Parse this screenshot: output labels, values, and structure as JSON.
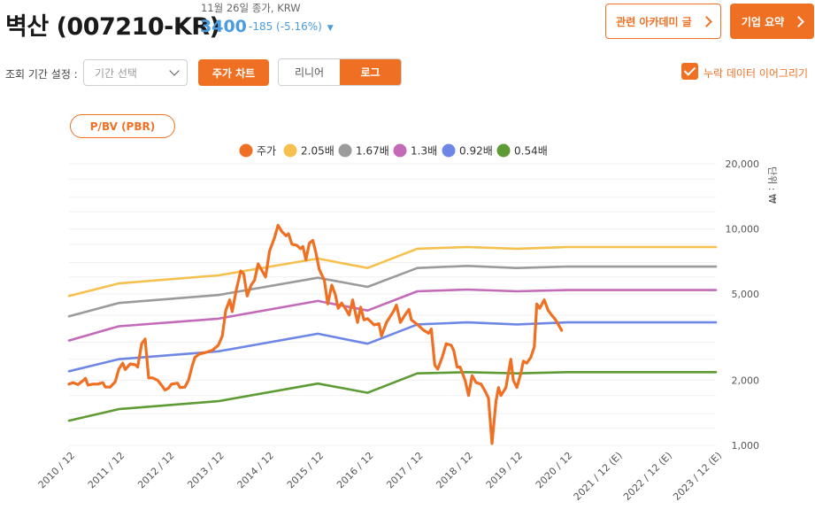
{
  "header": {
    "stock_name": "벽산 (007210-KR)",
    "close_date": "11월 26일 종가, KRW",
    "price": "3400",
    "price_change": "-185 (-5.16%)",
    "academy_button": "관련 아카데미 글",
    "summary_button": "기업 요약"
  },
  "controls": {
    "period_label": "조회 기간 설정 :",
    "period_placeholder": "기간 선택",
    "chart_button": "주가 차트",
    "scale_options": [
      "리니어",
      "로그"
    ],
    "scale_selected": "로그",
    "connect_missing_label": "누락 데이터 이어그리기",
    "connect_missing_checked": true
  },
  "tab": {
    "label": "P/BV (PBR)"
  },
  "colors": {
    "accent": "#f07023",
    "price_positive": "#4a9be0"
  },
  "chart_data": {
    "type": "line",
    "y_scale": "log",
    "ylim": [
      1000,
      20000
    ],
    "y_unit_label": "단위 : ₩",
    "y_ticks": [
      {
        "value": 1000,
        "label": "1,000"
      },
      {
        "value": 2000,
        "label": "2,000"
      },
      {
        "value": 5000,
        "label": "5,000"
      },
      {
        "value": 10000,
        "label": "10,000"
      },
      {
        "value": 20000,
        "label": "20,000"
      }
    ],
    "xlim": [
      2010.92,
      2023.92
    ],
    "x_ticks": [
      {
        "value": 2010.92,
        "label": "2010 / 12"
      },
      {
        "value": 2011.92,
        "label": "2011 / 12"
      },
      {
        "value": 2012.92,
        "label": "2012 / 12"
      },
      {
        "value": 2013.92,
        "label": "2013 / 12"
      },
      {
        "value": 2014.92,
        "label": "2014 / 12"
      },
      {
        "value": 2015.92,
        "label": "2015 / 12"
      },
      {
        "value": 2016.92,
        "label": "2016 / 12"
      },
      {
        "value": 2017.92,
        "label": "2017 / 12"
      },
      {
        "value": 2018.92,
        "label": "2018 / 12"
      },
      {
        "value": 2019.92,
        "label": "2019 / 12"
      },
      {
        "value": 2020.92,
        "label": "2020 / 12"
      },
      {
        "value": 2021.92,
        "label": "2021 / 12 (E)"
      },
      {
        "value": 2022.92,
        "label": "2022 / 12 (E)"
      },
      {
        "value": 2023.92,
        "label": "2023 / 12 (E)"
      }
    ],
    "grid": true,
    "legend_position": "top",
    "series": [
      {
        "name": "주가",
        "color": "#f07023",
        "points": [
          [
            2010.92,
            1920
          ],
          [
            2011.0,
            1950
          ],
          [
            2011.1,
            1910
          ],
          [
            2011.2,
            1990
          ],
          [
            2011.25,
            2040
          ],
          [
            2011.3,
            1900
          ],
          [
            2011.4,
            1920
          ],
          [
            2011.5,
            1920
          ],
          [
            2011.6,
            1950
          ],
          [
            2011.65,
            1860
          ],
          [
            2011.75,
            1860
          ],
          [
            2011.85,
            1970
          ],
          [
            2011.92,
            2250
          ],
          [
            2012.0,
            2400
          ],
          [
            2012.05,
            2240
          ],
          [
            2012.15,
            2380
          ],
          [
            2012.25,
            2360
          ],
          [
            2012.3,
            2300
          ],
          [
            2012.38,
            2950
          ],
          [
            2012.45,
            3100
          ],
          [
            2012.52,
            2050
          ],
          [
            2012.6,
            2050
          ],
          [
            2012.7,
            2000
          ],
          [
            2012.8,
            1870
          ],
          [
            2012.85,
            1800
          ],
          [
            2012.92,
            1840
          ],
          [
            2012.98,
            1920
          ],
          [
            2013.1,
            1940
          ],
          [
            2013.15,
            1850
          ],
          [
            2013.25,
            1860
          ],
          [
            2013.32,
            2000
          ],
          [
            2013.4,
            2350
          ],
          [
            2013.45,
            2550
          ],
          [
            2013.55,
            2650
          ],
          [
            2013.65,
            2680
          ],
          [
            2013.8,
            2750
          ],
          [
            2013.92,
            2900
          ],
          [
            2014.0,
            3200
          ],
          [
            2014.07,
            4200
          ],
          [
            2014.15,
            4700
          ],
          [
            2014.2,
            4150
          ],
          [
            2014.28,
            5200
          ],
          [
            2014.37,
            6400
          ],
          [
            2014.43,
            6200
          ],
          [
            2014.5,
            4900
          ],
          [
            2014.58,
            5500
          ],
          [
            2014.65,
            5800
          ],
          [
            2014.72,
            6900
          ],
          [
            2014.8,
            6400
          ],
          [
            2014.87,
            6000
          ],
          [
            2014.95,
            7900
          ],
          [
            2015.05,
            9100
          ],
          [
            2015.12,
            10400
          ],
          [
            2015.2,
            9700
          ],
          [
            2015.28,
            9300
          ],
          [
            2015.33,
            9500
          ],
          [
            2015.4,
            8500
          ],
          [
            2015.5,
            8400
          ],
          [
            2015.57,
            8100
          ],
          [
            2015.62,
            8300
          ],
          [
            2015.68,
            7200
          ],
          [
            2015.75,
            8600
          ],
          [
            2015.82,
            8850
          ],
          [
            2015.88,
            7800
          ],
          [
            2015.95,
            6500
          ],
          [
            2016.05,
            5800
          ],
          [
            2016.12,
            4500
          ],
          [
            2016.2,
            5500
          ],
          [
            2016.27,
            5000
          ],
          [
            2016.33,
            4300
          ],
          [
            2016.4,
            4550
          ],
          [
            2016.47,
            4300
          ],
          [
            2016.55,
            4000
          ],
          [
            2016.62,
            4700
          ],
          [
            2016.68,
            4050
          ],
          [
            2016.72,
            3700
          ],
          [
            2016.78,
            4350
          ],
          [
            2016.85,
            3800
          ],
          [
            2016.92,
            3850
          ],
          [
            2017.0,
            3700
          ],
          [
            2017.05,
            3600
          ],
          [
            2017.15,
            3650
          ],
          [
            2017.2,
            3200
          ],
          [
            2017.3,
            3700
          ],
          [
            2017.45,
            4200
          ],
          [
            2017.5,
            4450
          ],
          [
            2017.58,
            3700
          ],
          [
            2017.67,
            4000
          ],
          [
            2017.75,
            4250
          ],
          [
            2017.8,
            3800
          ],
          [
            2017.9,
            3650
          ],
          [
            2018.05,
            3400
          ],
          [
            2018.15,
            3300
          ],
          [
            2018.2,
            3450
          ],
          [
            2018.27,
            2350
          ],
          [
            2018.33,
            2250
          ],
          [
            2018.42,
            2550
          ],
          [
            2018.5,
            2950
          ],
          [
            2018.6,
            2900
          ],
          [
            2018.65,
            2750
          ],
          [
            2018.72,
            2300
          ],
          [
            2018.78,
            2300
          ],
          [
            2018.88,
            2000
          ],
          [
            2018.95,
            1700
          ],
          [
            2019.02,
            2100
          ],
          [
            2019.1,
            1950
          ],
          [
            2019.2,
            1920
          ],
          [
            2019.3,
            1750
          ],
          [
            2019.35,
            1650
          ],
          [
            2019.42,
            1020
          ],
          [
            2019.5,
            1600
          ],
          [
            2019.55,
            1850
          ],
          [
            2019.6,
            1700
          ],
          [
            2019.7,
            1850
          ],
          [
            2019.8,
            2500
          ],
          [
            2019.85,
            2000
          ],
          [
            2019.92,
            1850
          ],
          [
            2020.0,
            2150
          ],
          [
            2020.05,
            2450
          ],
          [
            2020.12,
            2400
          ],
          [
            2020.2,
            2550
          ],
          [
            2020.27,
            2850
          ],
          [
            2020.32,
            4500
          ],
          [
            2020.38,
            4300
          ],
          [
            2020.47,
            4700
          ],
          [
            2020.55,
            4200
          ],
          [
            2020.62,
            4000
          ],
          [
            2020.7,
            3800
          ],
          [
            2020.82,
            3400
          ]
        ]
      },
      {
        "name": "2.05배",
        "color": "#f5c04e",
        "points": [
          [
            2010.92,
            4900
          ],
          [
            2011.92,
            5600
          ],
          [
            2013.92,
            6100
          ],
          [
            2015.92,
            7300
          ],
          [
            2016.92,
            6600
          ],
          [
            2017.92,
            8100
          ],
          [
            2018.92,
            8250
          ],
          [
            2019.92,
            8100
          ],
          [
            2020.92,
            8250
          ],
          [
            2023.92,
            8250
          ]
        ]
      },
      {
        "name": "1.67배",
        "color": "#9b9b9b",
        "points": [
          [
            2010.92,
            3950
          ],
          [
            2011.92,
            4550
          ],
          [
            2013.92,
            4950
          ],
          [
            2015.92,
            5950
          ],
          [
            2016.92,
            5400
          ],
          [
            2017.92,
            6600
          ],
          [
            2018.92,
            6750
          ],
          [
            2019.92,
            6600
          ],
          [
            2020.92,
            6700
          ],
          [
            2023.92,
            6700
          ]
        ]
      },
      {
        "name": "1.3배",
        "color": "#c36ab8",
        "points": [
          [
            2010.92,
            3050
          ],
          [
            2011.92,
            3550
          ],
          [
            2013.92,
            3850
          ],
          [
            2015.92,
            4650
          ],
          [
            2016.92,
            4200
          ],
          [
            2017.92,
            5150
          ],
          [
            2018.92,
            5250
          ],
          [
            2019.92,
            5150
          ],
          [
            2020.92,
            5220
          ],
          [
            2023.92,
            5220
          ]
        ]
      },
      {
        "name": "0.92배",
        "color": "#6e87e6",
        "points": [
          [
            2010.92,
            2200
          ],
          [
            2011.92,
            2500
          ],
          [
            2013.92,
            2720
          ],
          [
            2015.92,
            3280
          ],
          [
            2016.92,
            2950
          ],
          [
            2017.92,
            3620
          ],
          [
            2018.92,
            3700
          ],
          [
            2019.92,
            3620
          ],
          [
            2020.92,
            3700
          ],
          [
            2023.92,
            3700
          ]
        ]
      },
      {
        "name": "0.54배",
        "color": "#5e9b35",
        "points": [
          [
            2010.92,
            1300
          ],
          [
            2011.92,
            1470
          ],
          [
            2013.92,
            1600
          ],
          [
            2015.92,
            1930
          ],
          [
            2016.92,
            1750
          ],
          [
            2017.92,
            2150
          ],
          [
            2018.92,
            2180
          ],
          [
            2019.92,
            2150
          ],
          [
            2020.92,
            2180
          ],
          [
            2023.92,
            2180
          ]
        ]
      }
    ]
  }
}
